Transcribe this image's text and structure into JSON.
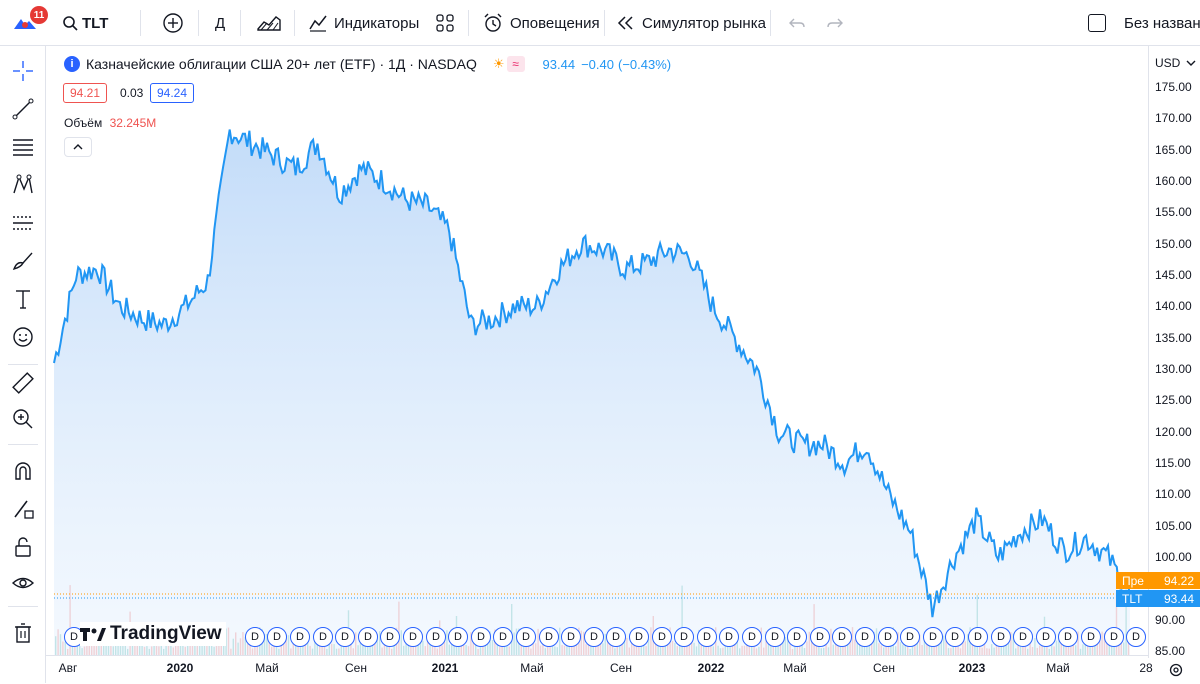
{
  "toolbar": {
    "badge": "11",
    "symbol": "TLT",
    "interval": "Д",
    "indicators": "Индикаторы",
    "alerts": "Оповещения",
    "replay": "Симулятор рынка",
    "layout_name": "Без названия"
  },
  "legend": {
    "title": "Казначейские облигации США 20+ лет (ETF) · 1Д · NASDAQ",
    "last": "93.44",
    "change": "−0.40",
    "change_pct": "(−0.43%)",
    "bid": "94.21",
    "spread": "0.03",
    "ask": "94.24",
    "volume_label": "Объём",
    "volume_value": "32.245M"
  },
  "price_axis": {
    "currency": "USD",
    "ticks": [
      "175.00",
      "170.00",
      "165.00",
      "160.00",
      "155.00",
      "150.00",
      "145.00",
      "140.00",
      "135.00",
      "130.00",
      "125.00",
      "120.00",
      "115.00",
      "110.00",
      "105.00",
      "100.00",
      "90.00",
      "85.00"
    ],
    "pre_label": "Пре",
    "pre_value": "94.22",
    "tlt_label": "TLT",
    "tlt_value": "93.44"
  },
  "time_axis": {
    "labels": [
      "Авг",
      "2020",
      "Май",
      "Сен",
      "2021",
      "Май",
      "Сен",
      "2022",
      "Май",
      "Сен",
      "2023",
      "Май",
      "28"
    ]
  },
  "watermark": "TradingView",
  "dividend_mark": "D",
  "colors": {
    "line": "#2196f3",
    "fill": "#cfe4fb",
    "up_vol": "#26a69a",
    "down_vol": "#ef5350",
    "pre": "#ff9800",
    "tlt": "#2196f3"
  },
  "chart_data": {
    "type": "area",
    "x": [
      "2019-07",
      "2019-08",
      "2019-09",
      "2019-10",
      "2019-11",
      "2019-12",
      "2020-01",
      "2020-02",
      "2020-03",
      "2020-04",
      "2020-05",
      "2020-06",
      "2020-07",
      "2020-08",
      "2020-09",
      "2020-10",
      "2020-11",
      "2020-12",
      "2021-01",
      "2021-02",
      "2021-03",
      "2021-04",
      "2021-05",
      "2021-06",
      "2021-07",
      "2021-08",
      "2021-09",
      "2021-10",
      "2021-11",
      "2021-12",
      "2022-01",
      "2022-02",
      "2022-03",
      "2022-04",
      "2022-05",
      "2022-06",
      "2022-07",
      "2022-08",
      "2022-09",
      "2022-10",
      "2022-11",
      "2022-12",
      "2023-01",
      "2023-02",
      "2023-03",
      "2023-04",
      "2023-05",
      "2023-06",
      "2023-07",
      "2023-08"
    ],
    "y": [
      131,
      145,
      146,
      140,
      138,
      137,
      140,
      144,
      168,
      166,
      164,
      162,
      166,
      158,
      162,
      160,
      157,
      156,
      152,
      137,
      138,
      140,
      140,
      146,
      150,
      149,
      146,
      147,
      149,
      148,
      140,
      135,
      130,
      120,
      118,
      118,
      115,
      118,
      110,
      104,
      92,
      100,
      106,
      100,
      104,
      106,
      101,
      103,
      100,
      94
    ],
    "ylim": [
      85,
      177
    ]
  }
}
